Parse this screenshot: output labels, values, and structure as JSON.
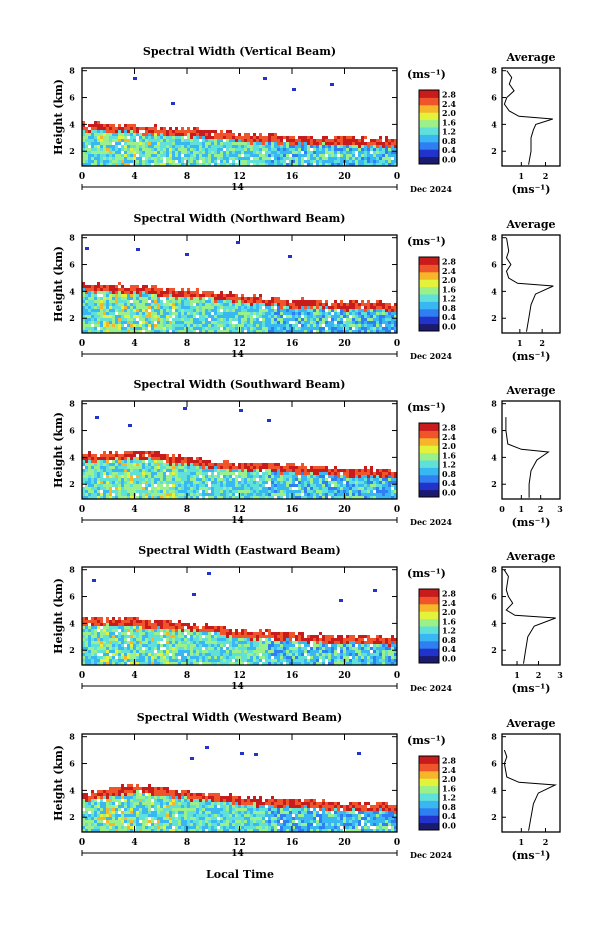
{
  "figure": {
    "xlabel": "Local Time",
    "ylabel": "Height (km)",
    "date_label": "Dec 2024",
    "date_center_tick": "14",
    "unit_label": "(ms⁻¹)",
    "avg_title": "Average",
    "colorbar_ticks": [
      "0.0",
      "0.4",
      "0.8",
      "1.2",
      "1.6",
      "2.0",
      "2.4",
      "2.8"
    ],
    "colors": [
      "#1a1a6e",
      "#2233cc",
      "#2f7ff2",
      "#38b7f2",
      "#5fe0d8",
      "#9af08a",
      "#e3f23a",
      "#f7b52a",
      "#f0542a",
      "#c81c1c"
    ]
  },
  "chart_data": [
    {
      "type": "heatmap",
      "title": "Spectral Width (Vertical Beam)",
      "xlabel": "",
      "ylabel": "Height (km)",
      "x_ticks": [
        "0",
        "4",
        "8",
        "12",
        "16",
        "20",
        "0"
      ],
      "xlim": [
        0,
        24
      ],
      "y_ticks": [
        "2",
        "4",
        "6",
        "8"
      ],
      "ylim": [
        0.9,
        8.2
      ],
      "colorbar": {
        "unit": "ms-1",
        "range": [
          0.0,
          2.8
        ]
      },
      "echo_top_km": [
        [
          0,
          4.0
        ],
        [
          4,
          3.8
        ],
        [
          8,
          3.6
        ],
        [
          12,
          3.2
        ],
        [
          16,
          3.0
        ],
        [
          20,
          2.9
        ],
        [
          24,
          2.8
        ]
      ],
      "average_profile": {
        "xlabel": "(ms⁻¹)",
        "x_ticks": [
          "1",
          "2"
        ],
        "xlim": [
          0.2,
          2.6
        ],
        "y_ticks": [
          "2",
          "4",
          "6",
          "8"
        ],
        "ylim": [
          0.9,
          8.2
        ],
        "points": [
          [
            1.3,
            1.0
          ],
          [
            1.4,
            2.0
          ],
          [
            1.4,
            3.0
          ],
          [
            1.5,
            3.6
          ],
          [
            1.6,
            4.0
          ],
          [
            2.3,
            4.4
          ],
          [
            0.9,
            4.6
          ],
          [
            0.5,
            5.0
          ],
          [
            0.3,
            5.5
          ],
          [
            0.4,
            6.0
          ],
          [
            0.7,
            6.5
          ],
          [
            0.5,
            7.0
          ],
          [
            0.6,
            7.5
          ],
          [
            0.4,
            8.0
          ]
        ]
      }
    },
    {
      "type": "heatmap",
      "title": "Spectral Width (Northward Beam)",
      "xlabel": "",
      "ylabel": "Height (km)",
      "x_ticks": [
        "0",
        "4",
        "8",
        "12",
        "16",
        "20",
        "0"
      ],
      "xlim": [
        0,
        24
      ],
      "y_ticks": [
        "2",
        "4",
        "6",
        "8"
      ],
      "ylim": [
        0.9,
        8.2
      ],
      "colorbar": {
        "unit": "ms-1",
        "range": [
          0.0,
          2.8
        ]
      },
      "echo_top_km": [
        [
          0,
          4.5
        ],
        [
          4,
          4.3
        ],
        [
          8,
          4.0
        ],
        [
          12,
          3.6
        ],
        [
          16,
          3.3
        ],
        [
          20,
          3.1
        ],
        [
          24,
          3.0
        ]
      ],
      "average_profile": {
        "xlabel": "(ms⁻¹)",
        "x_ticks": [
          "1",
          "2"
        ],
        "xlim": [
          0.2,
          2.8
        ],
        "y_ticks": [
          "2",
          "4",
          "6",
          "8"
        ],
        "ylim": [
          0.9,
          8.2
        ],
        "points": [
          [
            1.3,
            1.0
          ],
          [
            1.4,
            2.0
          ],
          [
            1.5,
            3.0
          ],
          [
            1.7,
            3.8
          ],
          [
            2.5,
            4.4
          ],
          [
            0.9,
            4.6
          ],
          [
            0.5,
            5.0
          ],
          [
            0.4,
            5.5
          ],
          [
            0.6,
            6.0
          ],
          [
            0.4,
            6.5
          ],
          [
            0.5,
            7.0
          ],
          [
            0.4,
            8.0
          ]
        ]
      }
    },
    {
      "type": "heatmap",
      "title": "Spectral Width (Southward Beam)",
      "xlabel": "",
      "ylabel": "Height (km)",
      "x_ticks": [
        "0",
        "4",
        "8",
        "12",
        "16",
        "20",
        "0"
      ],
      "xlim": [
        0,
        24
      ],
      "y_ticks": [
        "2",
        "4",
        "6",
        "8"
      ],
      "ylim": [
        0.9,
        8.2
      ],
      "colorbar": {
        "unit": "ms-1",
        "range": [
          0.0,
          2.8
        ]
      },
      "echo_top_km": [
        [
          0,
          4.2
        ],
        [
          4,
          4.4
        ],
        [
          8,
          3.9
        ],
        [
          12,
          3.5
        ],
        [
          16,
          3.3
        ],
        [
          20,
          3.1
        ],
        [
          24,
          3.0
        ]
      ],
      "average_profile": {
        "xlabel": "(ms⁻¹)",
        "x_ticks": [
          "0",
          "1",
          "2",
          "3"
        ],
        "xlim": [
          0,
          3
        ],
        "y_ticks": [
          "2",
          "4",
          "6",
          "8"
        ],
        "ylim": [
          0.9,
          8.2
        ],
        "points": [
          [
            1.4,
            1.0
          ],
          [
            1.4,
            2.0
          ],
          [
            1.5,
            3.0
          ],
          [
            1.8,
            3.8
          ],
          [
            2.4,
            4.4
          ],
          [
            1.0,
            4.6
          ],
          [
            0.3,
            5.0
          ],
          [
            0.2,
            6.0
          ],
          [
            0.2,
            7.0
          ]
        ]
      }
    },
    {
      "type": "heatmap",
      "title": "Spectral Width (Eastward Beam)",
      "xlabel": "",
      "ylabel": "Height (km)",
      "x_ticks": [
        "0",
        "4",
        "8",
        "12",
        "16",
        "20",
        "0"
      ],
      "xlim": [
        0,
        24
      ],
      "y_ticks": [
        "2",
        "4",
        "6",
        "8"
      ],
      "ylim": [
        0.9,
        8.2
      ],
      "colorbar": {
        "unit": "ms-1",
        "range": [
          0.0,
          2.8
        ]
      },
      "echo_top_km": [
        [
          0,
          4.4
        ],
        [
          4,
          4.2
        ],
        [
          8,
          3.9
        ],
        [
          12,
          3.4
        ],
        [
          16,
          3.2
        ],
        [
          20,
          3.0
        ],
        [
          24,
          2.9
        ]
      ],
      "average_profile": {
        "xlabel": "(ms⁻¹)",
        "x_ticks": [
          "1",
          "2",
          "3"
        ],
        "xlim": [
          0.3,
          3.0
        ],
        "y_ticks": [
          "2",
          "4",
          "6",
          "8"
        ],
        "ylim": [
          0.9,
          8.2
        ],
        "points": [
          [
            1.3,
            1.0
          ],
          [
            1.4,
            2.0
          ],
          [
            1.5,
            3.0
          ],
          [
            1.8,
            3.8
          ],
          [
            2.8,
            4.4
          ],
          [
            0.9,
            4.6
          ],
          [
            0.5,
            5.0
          ],
          [
            0.8,
            5.5
          ],
          [
            0.6,
            6.0
          ],
          [
            0.5,
            6.5
          ],
          [
            0.6,
            7.5
          ],
          [
            0.4,
            8.0
          ]
        ]
      }
    },
    {
      "type": "heatmap",
      "title": "Spectral Width (Westward Beam)",
      "xlabel": "Local Time",
      "ylabel": "Height (km)",
      "x_ticks": [
        "0",
        "4",
        "8",
        "12",
        "16",
        "20",
        "0"
      ],
      "xlim": [
        0,
        24
      ],
      "y_ticks": [
        "2",
        "4",
        "6",
        "8"
      ],
      "ylim": [
        0.9,
        8.2
      ],
      "colorbar": {
        "unit": "ms-1",
        "range": [
          0.0,
          2.8
        ]
      },
      "echo_top_km": [
        [
          0,
          3.7
        ],
        [
          4,
          4.3
        ],
        [
          8,
          3.8
        ],
        [
          12,
          3.4
        ],
        [
          16,
          3.2
        ],
        [
          20,
          3.0
        ],
        [
          24,
          2.9
        ]
      ],
      "average_profile": {
        "xlabel": "(ms⁻¹)",
        "x_ticks": [
          "1",
          "2"
        ],
        "xlim": [
          0.2,
          2.6
        ],
        "y_ticks": [
          "2",
          "4",
          "6",
          "8"
        ],
        "ylim": [
          0.9,
          8.2
        ],
        "points": [
          [
            1.3,
            1.0
          ],
          [
            1.4,
            2.0
          ],
          [
            1.5,
            3.0
          ],
          [
            1.7,
            3.8
          ],
          [
            2.4,
            4.4
          ],
          [
            0.9,
            4.6
          ],
          [
            0.4,
            5.0
          ],
          [
            0.3,
            6.0
          ],
          [
            0.4,
            6.5
          ],
          [
            0.3,
            7.0
          ]
        ]
      }
    }
  ]
}
